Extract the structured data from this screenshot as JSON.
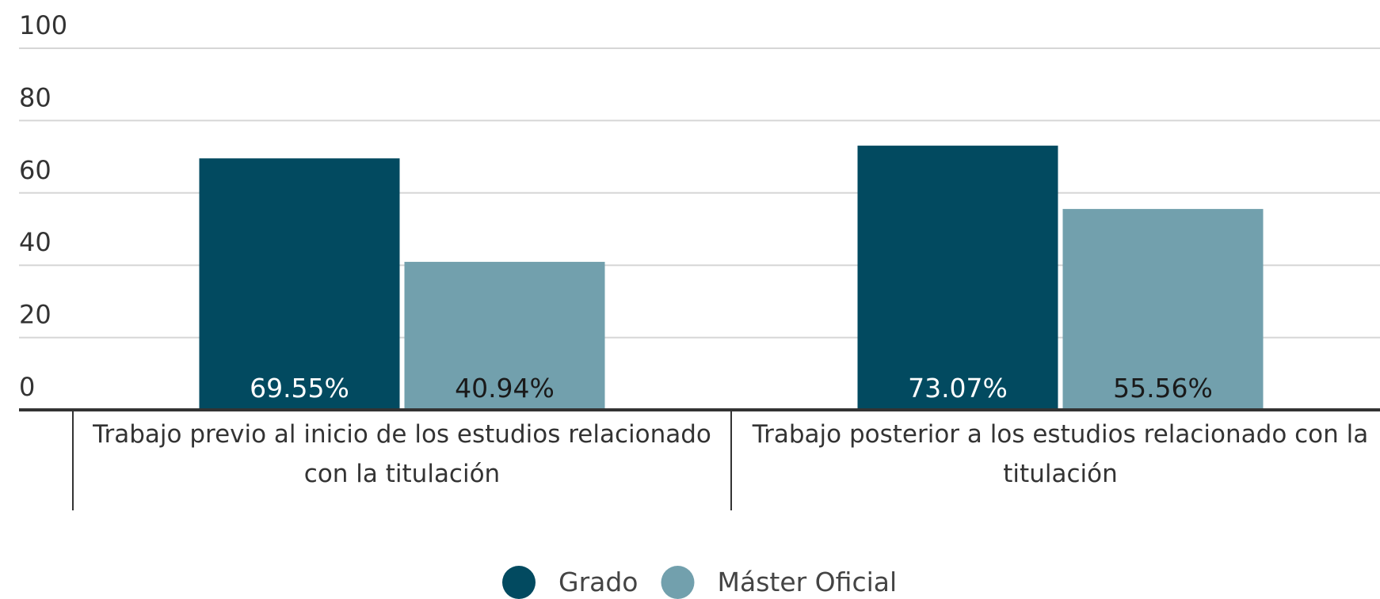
{
  "chart_data": {
    "type": "bar",
    "categories": [
      "Trabajo previo al inicio de los estudios relacionado con la titulación",
      "Trabajo posterior a los estudios relacionado con la titulación"
    ],
    "series": [
      {
        "name": "Grado",
        "color": "#024a60",
        "values": [
          69.55,
          73.07
        ],
        "value_labels": [
          "69.55%",
          "73.07%"
        ]
      },
      {
        "name": "Máster Oficial",
        "color": "#72a0ad",
        "values": [
          40.94,
          55.56
        ],
        "value_labels": [
          "40.94%",
          "55.56%"
        ]
      }
    ],
    "ylim": [
      0,
      100
    ],
    "yticks": [
      0,
      20,
      40,
      60,
      80,
      100
    ],
    "grid": true,
    "legend": "bottom"
  }
}
